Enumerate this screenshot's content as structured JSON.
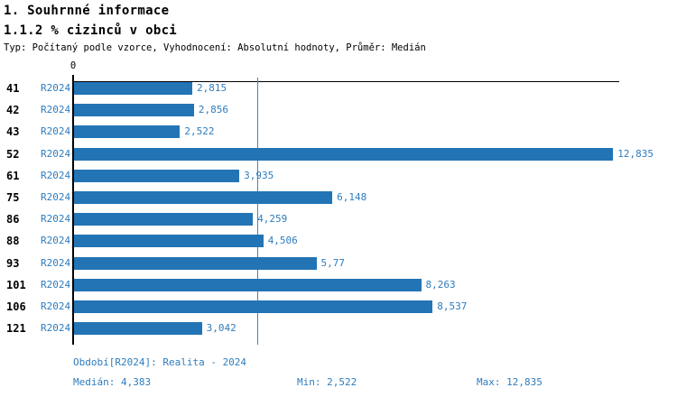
{
  "header": {
    "title": "1. Souhrnné informace",
    "subtitle": "1.1.2 % cizinců v obci",
    "meta": "Typ: Počítaný podle vzorce, Vyhodnocení: Absolutní hodnoty, Průměr: Medián"
  },
  "chart_data": {
    "type": "bar",
    "orientation": "horizontal",
    "title": "1.1.2 % cizinců v obci",
    "categories": [
      "41",
      "42",
      "43",
      "52",
      "61",
      "75",
      "86",
      "88",
      "93",
      "101",
      "106",
      "121"
    ],
    "series_label": "R2024",
    "values": [
      2.815,
      2.856,
      2.522,
      12.835,
      3.935,
      6.148,
      4.259,
      4.506,
      5.77,
      8.263,
      8.537,
      3.042
    ],
    "value_labels": [
      "2,815",
      "2,856",
      "2,522",
      "12,835",
      "3,935",
      "6,148",
      "4,259",
      "4,506",
      "5,77",
      "8,263",
      "8,537",
      "3,042"
    ],
    "x_zero_label": "0",
    "xlim": [
      0,
      13
    ],
    "grid": false,
    "legend_position": "none",
    "median": 4.383,
    "min": 2.522,
    "max": 12.835,
    "bar_color": "#2274b5",
    "label_color": "#2e7cbe",
    "median_line_color": "#3d85c0",
    "axis_color": "#000000"
  },
  "footer": {
    "period": "Období[R2024]: Realita - 2024",
    "median": "Medián: 4,383",
    "min": "Min: 2,522",
    "max": "Max: 12,835"
  }
}
